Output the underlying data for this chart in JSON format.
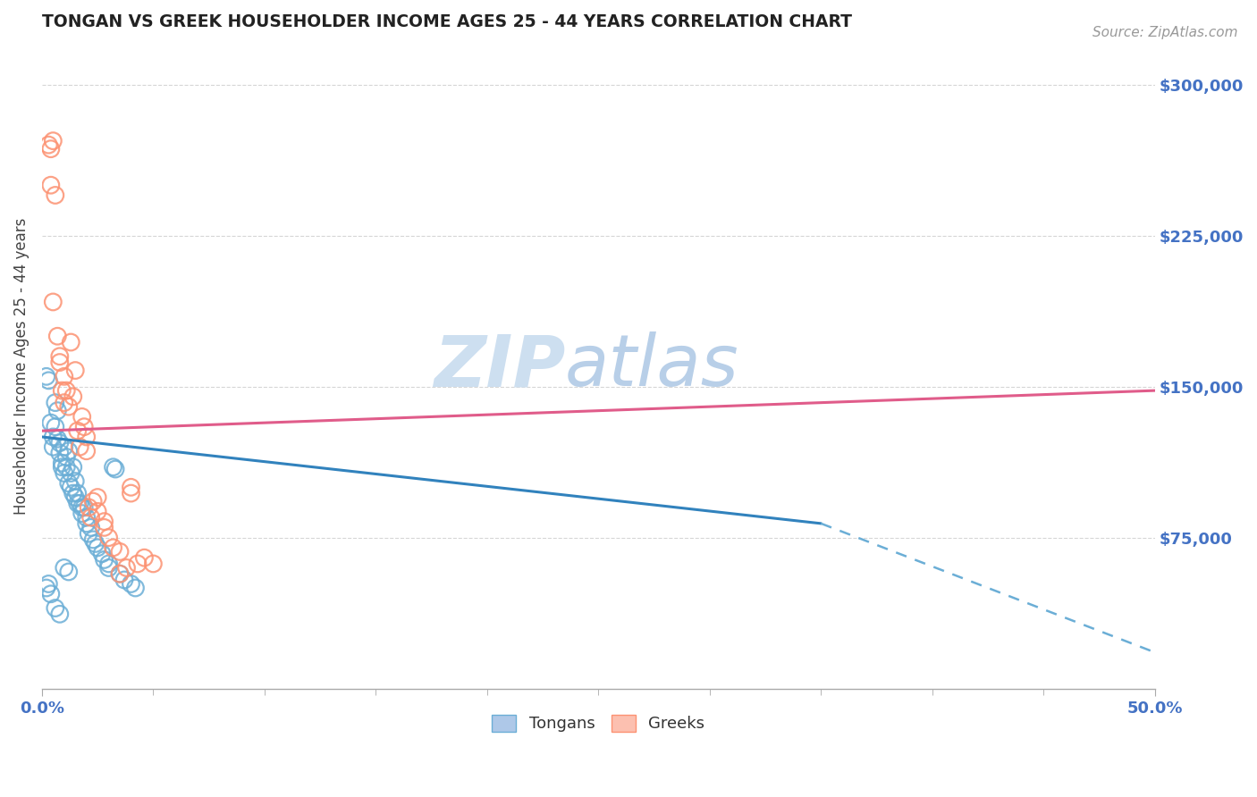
{
  "title": "TONGAN VS GREEK HOUSEHOLDER INCOME AGES 25 - 44 YEARS CORRELATION CHART",
  "source": "Source: ZipAtlas.com",
  "ylabel": "Householder Income Ages 25 - 44 years",
  "xlim": [
    0.0,
    0.5
  ],
  "ylim": [
    0,
    320000
  ],
  "yticks": [
    75000,
    150000,
    225000,
    300000
  ],
  "ytick_labels": [
    "$75,000",
    "$150,000",
    "$225,000",
    "$300,000"
  ],
  "xtick_left_label": "0.0%",
  "xtick_right_label": "50.0%",
  "tongan_color": "#6baed6",
  "greek_color": "#fc9272",
  "tongan_points": [
    [
      0.002,
      155000
    ],
    [
      0.003,
      153000
    ],
    [
      0.004,
      132000
    ],
    [
      0.005,
      125000
    ],
    [
      0.005,
      120000
    ],
    [
      0.006,
      142000
    ],
    [
      0.006,
      130000
    ],
    [
      0.007,
      138000
    ],
    [
      0.007,
      124000
    ],
    [
      0.008,
      122000
    ],
    [
      0.008,
      117000
    ],
    [
      0.009,
      112000
    ],
    [
      0.009,
      110000
    ],
    [
      0.01,
      120000
    ],
    [
      0.01,
      107000
    ],
    [
      0.011,
      115000
    ],
    [
      0.011,
      110000
    ],
    [
      0.012,
      102000
    ],
    [
      0.012,
      118000
    ],
    [
      0.013,
      100000
    ],
    [
      0.013,
      107000
    ],
    [
      0.014,
      97000
    ],
    [
      0.014,
      110000
    ],
    [
      0.015,
      95000
    ],
    [
      0.015,
      103000
    ],
    [
      0.016,
      97000
    ],
    [
      0.016,
      92000
    ],
    [
      0.017,
      92000
    ],
    [
      0.018,
      90000
    ],
    [
      0.018,
      87000
    ],
    [
      0.019,
      90000
    ],
    [
      0.02,
      82000
    ],
    [
      0.02,
      85000
    ],
    [
      0.021,
      77000
    ],
    [
      0.022,
      80000
    ],
    [
      0.023,
      74000
    ],
    [
      0.024,
      72000
    ],
    [
      0.025,
      70000
    ],
    [
      0.027,
      67000
    ],
    [
      0.028,
      64000
    ],
    [
      0.03,
      62000
    ],
    [
      0.03,
      60000
    ],
    [
      0.032,
      110000
    ],
    [
      0.033,
      109000
    ],
    [
      0.035,
      57000
    ],
    [
      0.037,
      54000
    ],
    [
      0.04,
      52000
    ],
    [
      0.042,
      50000
    ],
    [
      0.002,
      50000
    ],
    [
      0.003,
      52000
    ],
    [
      0.004,
      47000
    ],
    [
      0.006,
      40000
    ],
    [
      0.008,
      37000
    ],
    [
      0.01,
      60000
    ],
    [
      0.012,
      58000
    ]
  ],
  "greek_points": [
    [
      0.003,
      270000
    ],
    [
      0.004,
      268000
    ],
    [
      0.005,
      272000
    ],
    [
      0.004,
      250000
    ],
    [
      0.006,
      245000
    ],
    [
      0.005,
      192000
    ],
    [
      0.007,
      175000
    ],
    [
      0.008,
      165000
    ],
    [
      0.008,
      162000
    ],
    [
      0.009,
      148000
    ],
    [
      0.01,
      155000
    ],
    [
      0.01,
      142000
    ],
    [
      0.011,
      148000
    ],
    [
      0.012,
      140000
    ],
    [
      0.013,
      172000
    ],
    [
      0.014,
      145000
    ],
    [
      0.015,
      158000
    ],
    [
      0.016,
      128000
    ],
    [
      0.017,
      120000
    ],
    [
      0.018,
      135000
    ],
    [
      0.019,
      130000
    ],
    [
      0.02,
      125000
    ],
    [
      0.02,
      118000
    ],
    [
      0.021,
      90000
    ],
    [
      0.022,
      85000
    ],
    [
      0.023,
      93000
    ],
    [
      0.025,
      88000
    ],
    [
      0.025,
      95000
    ],
    [
      0.028,
      80000
    ],
    [
      0.028,
      83000
    ],
    [
      0.03,
      75000
    ],
    [
      0.032,
      70000
    ],
    [
      0.035,
      68000
    ],
    [
      0.035,
      57000
    ],
    [
      0.038,
      60000
    ],
    [
      0.04,
      100000
    ],
    [
      0.04,
      97000
    ],
    [
      0.043,
      62000
    ],
    [
      0.046,
      65000
    ],
    [
      0.05,
      62000
    ]
  ],
  "tongan_line_solid": {
    "x0": 0.0,
    "y0": 125000,
    "x1": 0.35,
    "y1": 82000
  },
  "tongan_line_dashed": {
    "x0": 0.35,
    "y0": 82000,
    "x1": 0.5,
    "y1": 18000
  },
  "greek_line_solid": {
    "x0": 0.0,
    "y0": 128000,
    "x1": 0.5,
    "y1": 148000
  },
  "background_color": "#ffffff",
  "grid_color": "#cccccc",
  "tick_label_color": "#4472c4",
  "watermark_zip_color": "#cddff0",
  "watermark_atlas_color": "#b8cfe8"
}
